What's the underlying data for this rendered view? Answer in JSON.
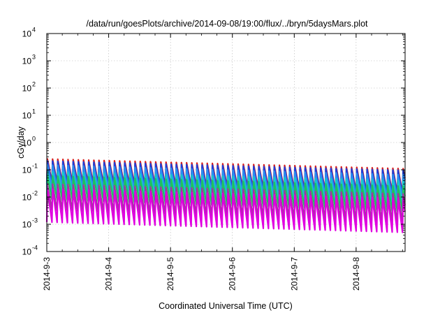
{
  "chart_data": {
    "type": "line",
    "title": "/data/run/goesPlots/archive/2014-09-08/19:00/flux/../bryn/5daysMars.plot",
    "xlabel": "Coordinated Universal Time (UTC)",
    "ylabel": "cGy/day",
    "yscale": "log",
    "ylim": [
      0.0001,
      10000
    ],
    "xlim": [
      "2014-09-03 00:00",
      "2014-09-08 19:00"
    ],
    "grid": true,
    "legend": "none",
    "x_tick_labels": [
      "2014-9-3",
      "2014-9-4",
      "2014-9-5",
      "2014-9-6",
      "2014-9-7",
      "2014-9-8"
    ],
    "y_tick_labels": [
      {
        "base": "10",
        "exp": "-4"
      },
      {
        "base": "10",
        "exp": "-3"
      },
      {
        "base": "10",
        "exp": "-2"
      },
      {
        "base": "10",
        "exp": "-1"
      },
      {
        "base": "10",
        "exp": "0"
      },
      {
        "base": "10",
        "exp": "1"
      },
      {
        "base": "10",
        "exp": "2"
      },
      {
        "base": "10",
        "exp": "3"
      },
      {
        "base": "10",
        "exp": "4"
      }
    ],
    "period_hours": 2,
    "series": [
      {
        "color": "#d81e1e",
        "peak_start": 0.25,
        "peak_end": 0.11,
        "trough_start": 0.035,
        "trough_end": 0.014
      },
      {
        "color": "#1e3fd8",
        "peak_start": 0.21,
        "peak_end": 0.095,
        "trough_start": 0.03,
        "trough_end": 0.012
      },
      {
        "color": "#2a8ef0",
        "peak_start": 0.15,
        "peak_end": 0.065,
        "trough_start": 0.022,
        "trough_end": 0.009
      },
      {
        "color": "#18c9c9",
        "peak_start": 0.085,
        "peak_end": 0.04,
        "trough_start": 0.013,
        "trough_end": 0.005
      },
      {
        "color": "#20c060",
        "peak_start": 0.06,
        "peak_end": 0.025,
        "trough_start": 0.008,
        "trough_end": 0.003
      },
      {
        "color": "#a0389c",
        "peak_start": 0.03,
        "peak_end": 0.013,
        "trough_start": 0.0032,
        "trough_end": 0.0012
      },
      {
        "color": "#e000e0",
        "peak_start": 0.02,
        "peak_end": 0.009,
        "trough_start": 0.0012,
        "trough_end": 0.0005
      }
    ]
  }
}
